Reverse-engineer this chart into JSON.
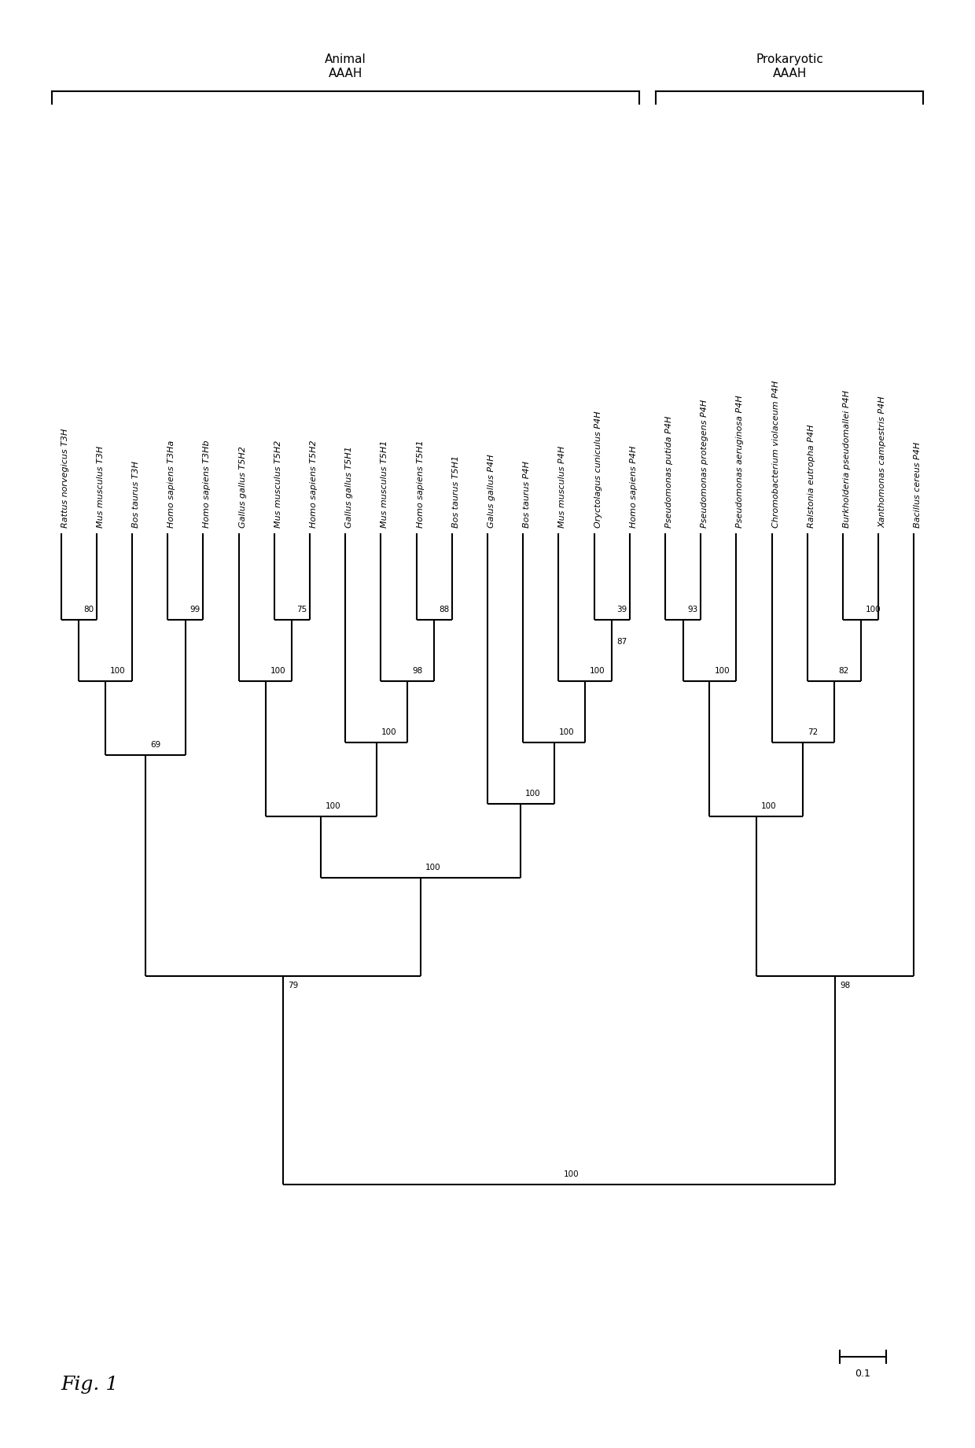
{
  "title": "Fig. 1",
  "figsize": [
    12.4,
    18.41
  ],
  "background": "white",
  "taxa": [
    "Rattus norvegicus T3H",
    "Mus musculus T3H",
    "Bos taurus T3H",
    "Homo sapiens T3Ha",
    "Homo sapiens T3Hb",
    "Gallus gallus T5H2",
    "Mus musculus T5H2",
    "Homo sapiens T5H2",
    "Gallus gallus T5H1",
    "Mus musculus T5H1",
    "Homo sapiens T5H1",
    "Bos taurus T5H1",
    "Galus gallus P4H",
    "Bos taurus P4H",
    "Mus musculus P4H",
    "Oryctolagus cuniculus P4H",
    "Homo sapiens P4H",
    "Pseudomonas putida P4H",
    "Pseudomonas protegens P4H",
    "Pseudomonas aeruginosa P4H",
    "Chromobacterium violaceum P4H",
    "Ralstonia eutropha P4H",
    "Burkholderia pseudomallei P4H",
    "Xanthomonas campestris P4H",
    "Bacillus cereus P4H"
  ],
  "animal_label": "Animal\nAAAH",
  "prokaryotic_label": "Prokaryotic\nAAAH",
  "scale_bar_value": "0.1",
  "fig_label": "Fig. 1"
}
